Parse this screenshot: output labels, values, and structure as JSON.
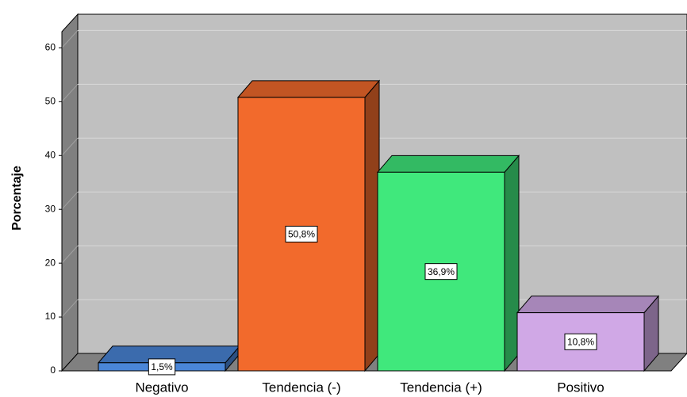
{
  "chart_data": {
    "type": "bar3d",
    "y_label": "Porcentaje",
    "categories": [
      "Negativo",
      "Tendencia (-)",
      "Tendencia (+)",
      "Positivo"
    ],
    "values": [
      1.5,
      50.8,
      36.9,
      10.8
    ],
    "value_labels": [
      "1,5%",
      "50,8%",
      "36,9%",
      "10,8%"
    ],
    "colors": [
      "#4a86d8",
      "#f26a2c",
      "#40e87c",
      "#d0a8e6"
    ],
    "ylim": [
      0,
      63
    ],
    "yticks": [
      0,
      10,
      20,
      30,
      40,
      50,
      60
    ],
    "grid": true
  }
}
